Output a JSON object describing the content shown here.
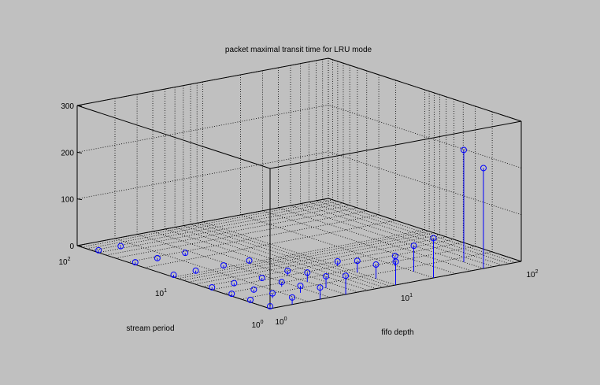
{
  "chart_data": {
    "type": "stem3",
    "title": "packet maximal transit time for LRU mode",
    "xlabel": "fifo depth",
    "ylabel": "stream period",
    "zlabel": "",
    "x_scale": "log",
    "y_scale": "log",
    "z_scale": "linear",
    "xlim": [
      1,
      100
    ],
    "ylim": [
      1,
      100
    ],
    "zlim": [
      0,
      300
    ],
    "z_ticks": [
      "0",
      "100",
      "200",
      "300"
    ],
    "x_ticks": [
      {
        "base": "10",
        "exp": "0"
      },
      {
        "base": "10",
        "exp": "1"
      },
      {
        "base": "10",
        "exp": "2"
      }
    ],
    "y_ticks": [
      {
        "base": "10",
        "exp": "0"
      },
      {
        "base": "10",
        "exp": "1"
      },
      {
        "base": "10",
        "exp": "2"
      }
    ],
    "grid": true,
    "series_color": "#0000ff",
    "points": [
      {
        "x": 1,
        "y": 1,
        "z": 5
      },
      {
        "x": 1.5,
        "y": 1,
        "z": 15
      },
      {
        "x": 2.5,
        "y": 1,
        "z": 25
      },
      {
        "x": 4,
        "y": 1,
        "z": 40
      },
      {
        "x": 10,
        "y": 1,
        "z": 50
      },
      {
        "x": 20,
        "y": 1,
        "z": 85
      },
      {
        "x": 50,
        "y": 1,
        "z": 215
      },
      {
        "x": 1,
        "y": 1.6,
        "z": 5
      },
      {
        "x": 1.5,
        "y": 1.6,
        "z": 10
      },
      {
        "x": 2.5,
        "y": 1.6,
        "z": 15
      },
      {
        "x": 4,
        "y": 1.6,
        "z": 25
      },
      {
        "x": 10,
        "y": 1.6,
        "z": 30
      },
      {
        "x": 20,
        "y": 1.6,
        "z": 55
      },
      {
        "x": 50,
        "y": 1.6,
        "z": 240
      },
      {
        "x": 1,
        "y": 2.5,
        "z": 5
      },
      {
        "x": 1.5,
        "y": 2.5,
        "z": 5
      },
      {
        "x": 2.5,
        "y": 2.5,
        "z": 10
      },
      {
        "x": 4,
        "y": 2.5,
        "z": 20
      },
      {
        "x": 10,
        "y": 2.5,
        "z": 25
      },
      {
        "x": 20,
        "y": 2.5,
        "z": 20
      },
      {
        "x": 1,
        "y": 4,
        "z": 5
      },
      {
        "x": 1.5,
        "y": 4,
        "z": 5
      },
      {
        "x": 2.5,
        "y": 4,
        "z": 5
      },
      {
        "x": 4,
        "y": 4,
        "z": 10
      },
      {
        "x": 10,
        "y": 4,
        "z": 10
      },
      {
        "x": 1,
        "y": 10,
        "z": 5
      },
      {
        "x": 1.5,
        "y": 10,
        "z": 5
      },
      {
        "x": 2.5,
        "y": 10,
        "z": 5
      },
      {
        "x": 4,
        "y": 10,
        "z": 5
      },
      {
        "x": 1,
        "y": 25,
        "z": 5
      },
      {
        "x": 1.5,
        "y": 25,
        "z": 5
      },
      {
        "x": 2.5,
        "y": 25,
        "z": 5
      },
      {
        "x": 1,
        "y": 60,
        "z": 5
      },
      {
        "x": 1.5,
        "y": 60,
        "z": 5
      }
    ]
  }
}
